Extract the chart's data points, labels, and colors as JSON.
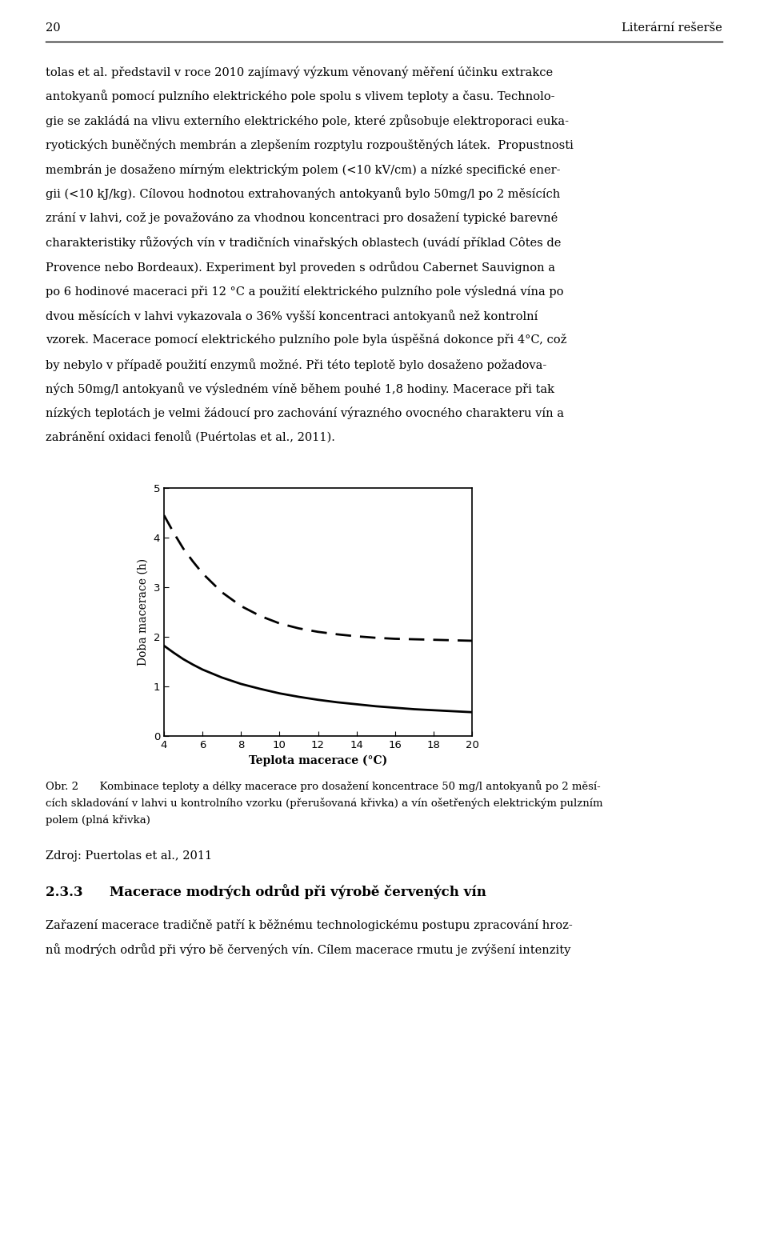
{
  "page_number": "20",
  "page_header_right": "Literární rešerše",
  "body_lines": [
    "tolas et al. představil v roce 2010 zajímavý výzkum věnovaný měření účinku extrakce",
    "antokyanů pomocí pulzního elektrického pole spolu s vlivem teploty a času. Technolo-",
    "gie se zakládá na vlivu externího elektrického pole, které způsobuje elektroporaci euka-",
    "ryotických buněčných membrán a zlepšením rozptylu rozpouštěných látek.  Propustnosti",
    "membrán je dosaženo mírným elektrickým polem (<10 kV/cm) a nízké specifické ener-",
    "gii (<10 kJ/kg). Cílovou hodnotou extrahovaných antokyanů bylo 50mg/l po 2 měsících",
    "zrání v lahvi, což je považováno za vhodnou koncentraci pro dosažení typické barevné",
    "charakteristiky růžových vín v tradičních vinařských oblastech (uvádí příklad Côtes de",
    "Provence nebo Bordeaux). Experiment byl proveden s odrůdou Cabernet Sauvignon a",
    "po 6 hodinové maceraci při 12 °C a použití elektrického pulzního pole výsledná vína po",
    "dvou měsících v lahvi vykazovala o 36% vyšší koncentraci antokyanů než kontrolní",
    "vzorek. Macerace pomocí elektrického pulzního pole byla úspěšná dokonce při 4°C, což",
    "by nebylo v případě použití enzymů možné. Při této teplotě bylo dosaženo požadova-",
    "ných 50mg/l antokyanů ve výsledném víně během pouhé 1,8 hodiny. Macerace při tak",
    "nízkých teplotách je velmi žádoucí pro zachování výrazného ovocného charakteru vín a",
    "zabránění oxidaci fenolů (Puértolas et al., 2011)."
  ],
  "caption_lines": [
    "Obr. 2  Kombinace teploty a délky macerace pro dosažení koncentrace 50 mg/l antokyanů po 2 měsí-",
    "cích skladování v lahvi u kontrolního vzorku (přerušovaná křivka) a vín ošetřených elektrickým pulzním",
    "polem (plná křivka)"
  ],
  "source_line": "Zdroj: Puertolas et al., 2011",
  "section_heading": "2.3.3  Macerace modrých odrůd při výrobě červených vín",
  "last_lines": [
    "Zařazení macerace tradičně patří k běžnému technologickému postupu zpracování hroz-",
    "nů modrých odrůd při výro bě červených vín. Cílem macerace rmutu je zvýšení intenzity"
  ],
  "ylabel": "Doba macerace (h)",
  "xlabel": "Teplota macerace (°C)",
  "x_ticks": [
    4,
    6,
    8,
    10,
    12,
    14,
    16,
    18,
    20
  ],
  "y_ticks": [
    0,
    1,
    2,
    3,
    4,
    5
  ],
  "xlim": [
    4,
    20
  ],
  "ylim": [
    0,
    5
  ],
  "dashed_curve_x": [
    4,
    4.5,
    5,
    5.5,
    6,
    7,
    8,
    9,
    10,
    11,
    12,
    13,
    14,
    15,
    16,
    17,
    18,
    19,
    20
  ],
  "dashed_curve_y": [
    4.45,
    4.1,
    3.78,
    3.52,
    3.28,
    2.9,
    2.62,
    2.42,
    2.27,
    2.17,
    2.1,
    2.05,
    2.01,
    1.98,
    1.96,
    1.95,
    1.94,
    1.93,
    1.92
  ],
  "solid_curve_x": [
    4,
    4.5,
    5,
    5.5,
    6,
    7,
    8,
    9,
    10,
    11,
    12,
    13,
    14,
    15,
    16,
    17,
    18,
    19,
    20
  ],
  "solid_curve_y": [
    1.82,
    1.68,
    1.55,
    1.44,
    1.34,
    1.18,
    1.05,
    0.95,
    0.86,
    0.79,
    0.73,
    0.68,
    0.64,
    0.6,
    0.57,
    0.54,
    0.52,
    0.5,
    0.48
  ],
  "background_color": "#ffffff",
  "text_color": "#000000"
}
